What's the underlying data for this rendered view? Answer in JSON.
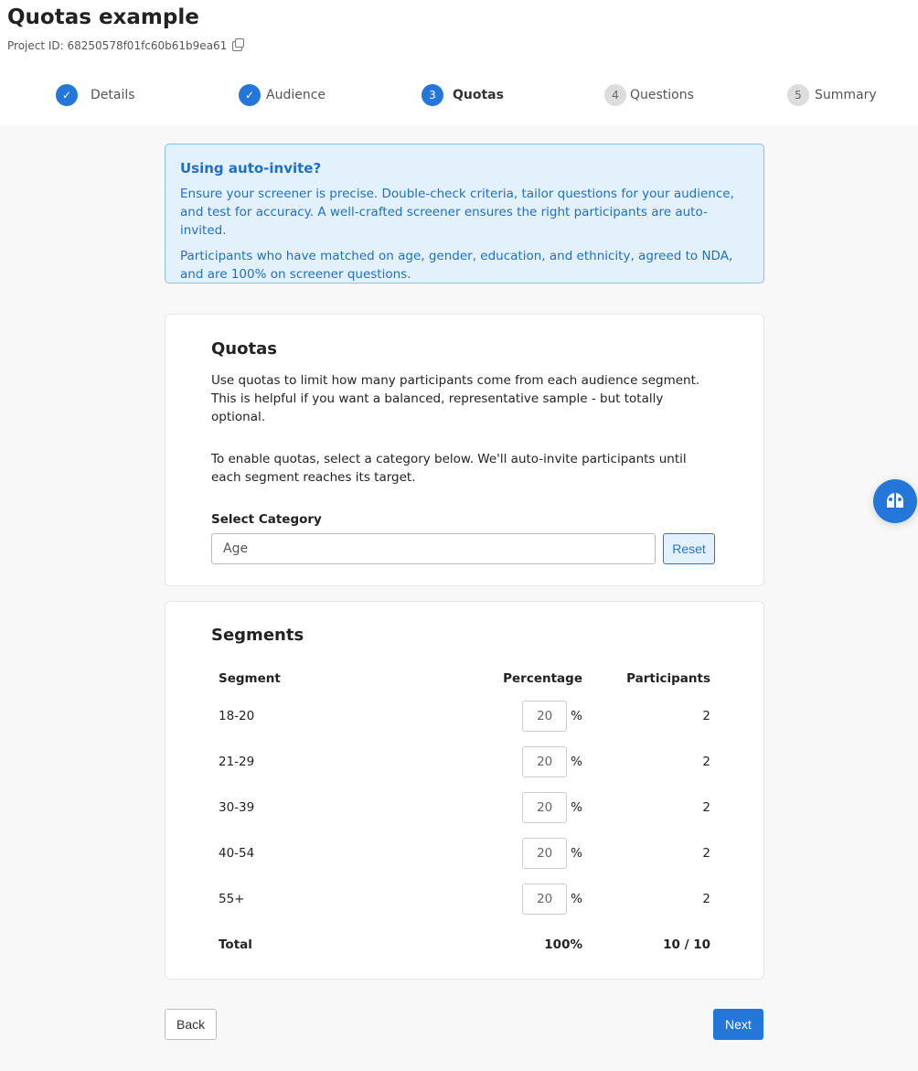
{
  "header": {
    "title": "Quotas example",
    "project_id": "Project ID: 68250578f01fc60b61b9ea61"
  },
  "steps": [
    {
      "num": "1",
      "label": "Details",
      "state": "done"
    },
    {
      "num": "2",
      "label": "Audience",
      "state": "done"
    },
    {
      "num": "3",
      "label": "Quotas",
      "state": "active"
    },
    {
      "num": "4",
      "label": "Questions",
      "state": "pending"
    },
    {
      "num": "5",
      "label": "Summary",
      "state": "pending"
    }
  ],
  "info": {
    "title": "Using auto-invite?",
    "p1": "Ensure your screener is precise. Double-check criteria, tailor questions for your audience, and test for accuracy. A well-crafted screener ensures the right participants are auto-invited.",
    "p2": "Participants who have matched on age, gender, education, and ethnicity, agreed to NDA, and are 100% on screener questions."
  },
  "quotas": {
    "title": "Quotas",
    "p1": "Use quotas to limit how many participants come from each audience segment. This is helpful if you want a balanced, representative sample - but totally optional.",
    "p2": "To enable quotas, select a category below. We'll auto-invite participants until each segment reaches its target.",
    "select_label": "Select Category",
    "select_value": "Age",
    "reset": "Reset"
  },
  "segments": {
    "title": "Segments",
    "headers": {
      "segment": "Segment",
      "percentage": "Percentage",
      "participants": "Participants"
    },
    "pct_symbol": "%",
    "rows": [
      {
        "segment": "18-20",
        "percentage": "20",
        "participants": "2"
      },
      {
        "segment": "21-29",
        "percentage": "20",
        "participants": "2"
      },
      {
        "segment": "30-39",
        "percentage": "20",
        "participants": "2"
      },
      {
        "segment": "40-54",
        "percentage": "20",
        "participants": "2"
      },
      {
        "segment": "55+",
        "percentage": "20",
        "participants": "2"
      }
    ],
    "total": {
      "label": "Total",
      "percentage": "100%",
      "participants": "10 / 10"
    }
  },
  "footer": {
    "back": "Back",
    "next": "Next"
  },
  "colors": {
    "accent": "#2476d9",
    "info_bg": "#e3f1fc"
  }
}
